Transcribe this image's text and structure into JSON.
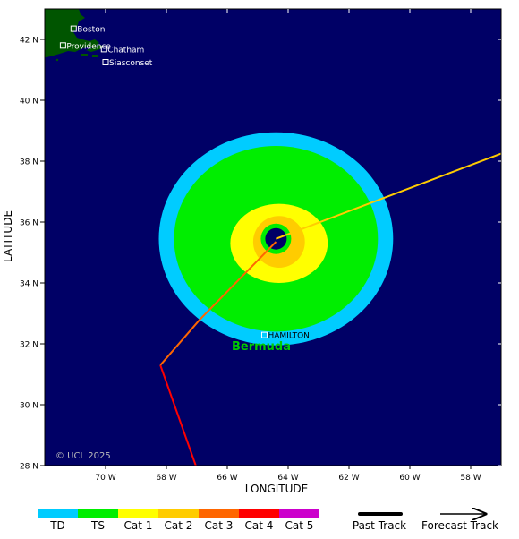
{
  "map": {
    "lon_range": [
      -72,
      -57
    ],
    "lat_range": [
      28,
      43
    ],
    "ocean_color": "#000066",
    "land_color": "#005500",
    "x_ticks": [
      {
        "lon": -70,
        "label": "70 W"
      },
      {
        "lon": -68,
        "label": "68 W"
      },
      {
        "lon": -66,
        "label": "66 W"
      },
      {
        "lon": -64,
        "label": "64 W"
      },
      {
        "lon": -62,
        "label": "62 W"
      },
      {
        "lon": -60,
        "label": "60 W"
      },
      {
        "lon": -58,
        "label": "58 W"
      }
    ],
    "y_ticks": [
      {
        "lat": 42,
        "label": "42 N"
      },
      {
        "lat": 40,
        "label": "40 N"
      },
      {
        "lat": 38,
        "label": "38 N"
      },
      {
        "lat": 36,
        "label": "36 N"
      },
      {
        "lat": 34,
        "label": "34 N"
      },
      {
        "lat": 32,
        "label": "32 N"
      },
      {
        "lat": 30,
        "label": "30 N"
      },
      {
        "lat": 28,
        "label": "28 N"
      }
    ],
    "xlabel": "LONGITUDE",
    "ylabel": "LATITUDE",
    "copyright": "© UCL 2025",
    "island_name": "Bermuda"
  },
  "places": [
    {
      "name": "Boston",
      "lon": -71.05,
      "lat": 42.35
    },
    {
      "name": "Providence",
      "lon": -71.4,
      "lat": 41.8
    },
    {
      "name": "Chatham",
      "lon": -70.05,
      "lat": 41.68
    },
    {
      "name": "Siasconset",
      "lon": -70.0,
      "lat": 41.25
    },
    {
      "name": "HAMILTON",
      "lon": -64.78,
      "lat": 32.29
    }
  ],
  "wind_field": {
    "center": {
      "lon": -64.4,
      "lat": 35.45
    },
    "zones": [
      {
        "category": "TD",
        "color": "#00ccff",
        "rx_deg": 3.85,
        "ry_deg": 3.5,
        "dlon": 0.0,
        "dlat": 0.0
      },
      {
        "category": "TS",
        "color": "#00ee00",
        "rx_deg": 3.35,
        "ry_deg": 3.05,
        "dlon": 0.0,
        "dlat": 0.0
      },
      {
        "category": "Cat 1",
        "color": "#ffff00",
        "rx_deg": 1.6,
        "ry_deg": 1.3,
        "dlon": 0.1,
        "dlat": -0.15
      },
      {
        "category": "Cat 2",
        "color": "#ffcc00",
        "rx_deg": 0.85,
        "ry_deg": 0.85,
        "dlon": 0.1,
        "dlat": -0.1
      }
    ],
    "eye_color": "#000066",
    "eye_ring_color": "#00ee00"
  },
  "tracks": {
    "past": [
      {
        "lon": -67.0,
        "lat": 27.9,
        "color": "#ff0000"
      },
      {
        "lon": -68.2,
        "lat": 31.3,
        "color": "#ff0000"
      },
      {
        "lon": -66.9,
        "lat": 32.8,
        "color": "#ff6600"
      },
      {
        "lon": -64.4,
        "lat": 35.35,
        "color": "#ff6600"
      }
    ],
    "forecast": [
      {
        "lon": -64.4,
        "lat": 35.45,
        "color": "#ffcc00"
      },
      {
        "lon": -57.0,
        "lat": 38.25,
        "color": "#ffcc00"
      }
    ]
  },
  "legend": {
    "categories": [
      {
        "label": "TD",
        "color": "#00ccff"
      },
      {
        "label": "TS",
        "color": "#00ee00"
      },
      {
        "label": "Cat 1",
        "color": "#ffff00"
      },
      {
        "label": "Cat 2",
        "color": "#ffcc00"
      },
      {
        "label": "Cat 3",
        "color": "#ff6600"
      },
      {
        "label": "Cat 4",
        "color": "#ff0000"
      },
      {
        "label": "Cat 5",
        "color": "#cc00cc"
      }
    ],
    "past_track_label": "Past Track",
    "forecast_track_label": "Forecast Track"
  }
}
